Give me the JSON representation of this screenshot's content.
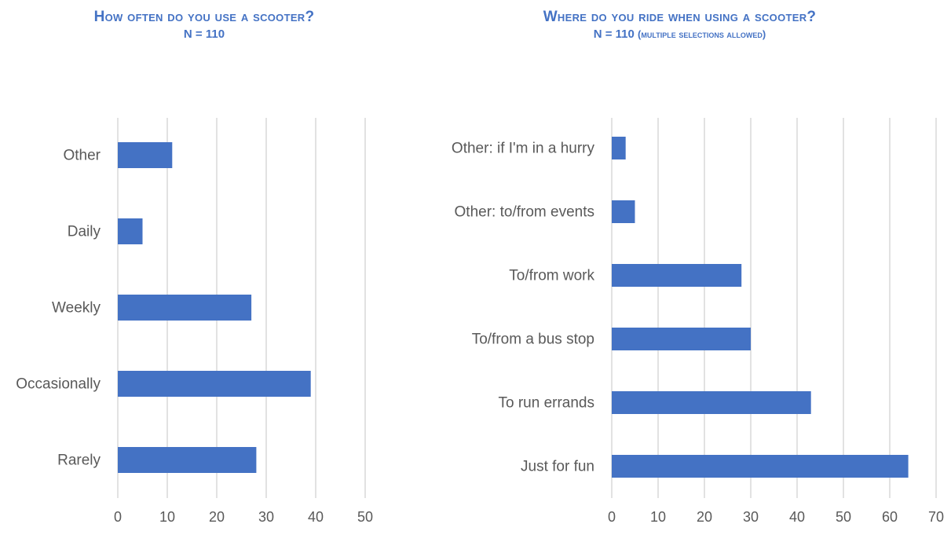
{
  "chart_data": [
    {
      "type": "bar",
      "orientation": "horizontal",
      "title": "How often do you use a scooter?",
      "subtitle": "N = 110",
      "categories": [
        "Rarely",
        "Occasionally",
        "Weekly",
        "Daily",
        "Other"
      ],
      "values": [
        28,
        39,
        27,
        5,
        11
      ],
      "xlim": [
        0,
        50
      ],
      "xticks": [
        0,
        10,
        20,
        30,
        40,
        50
      ],
      "grid": true,
      "bar_color": "#4472C4"
    },
    {
      "type": "bar",
      "orientation": "horizontal",
      "title": "Where do you ride when using a scooter?",
      "subtitle": "N = 110",
      "subtitle_note": "(multiple selections allowed)",
      "categories": [
        "Just for fun",
        "To run errands",
        "To/from a bus stop",
        "To/from work",
        "Other: to/from events",
        "Other: if I'm in a hurry"
      ],
      "values": [
        64,
        43,
        30,
        28,
        5,
        3
      ],
      "xlim": [
        0,
        70
      ],
      "xticks": [
        0,
        10,
        20,
        30,
        40,
        50,
        60,
        70
      ],
      "grid": true,
      "bar_color": "#4472C4"
    }
  ]
}
